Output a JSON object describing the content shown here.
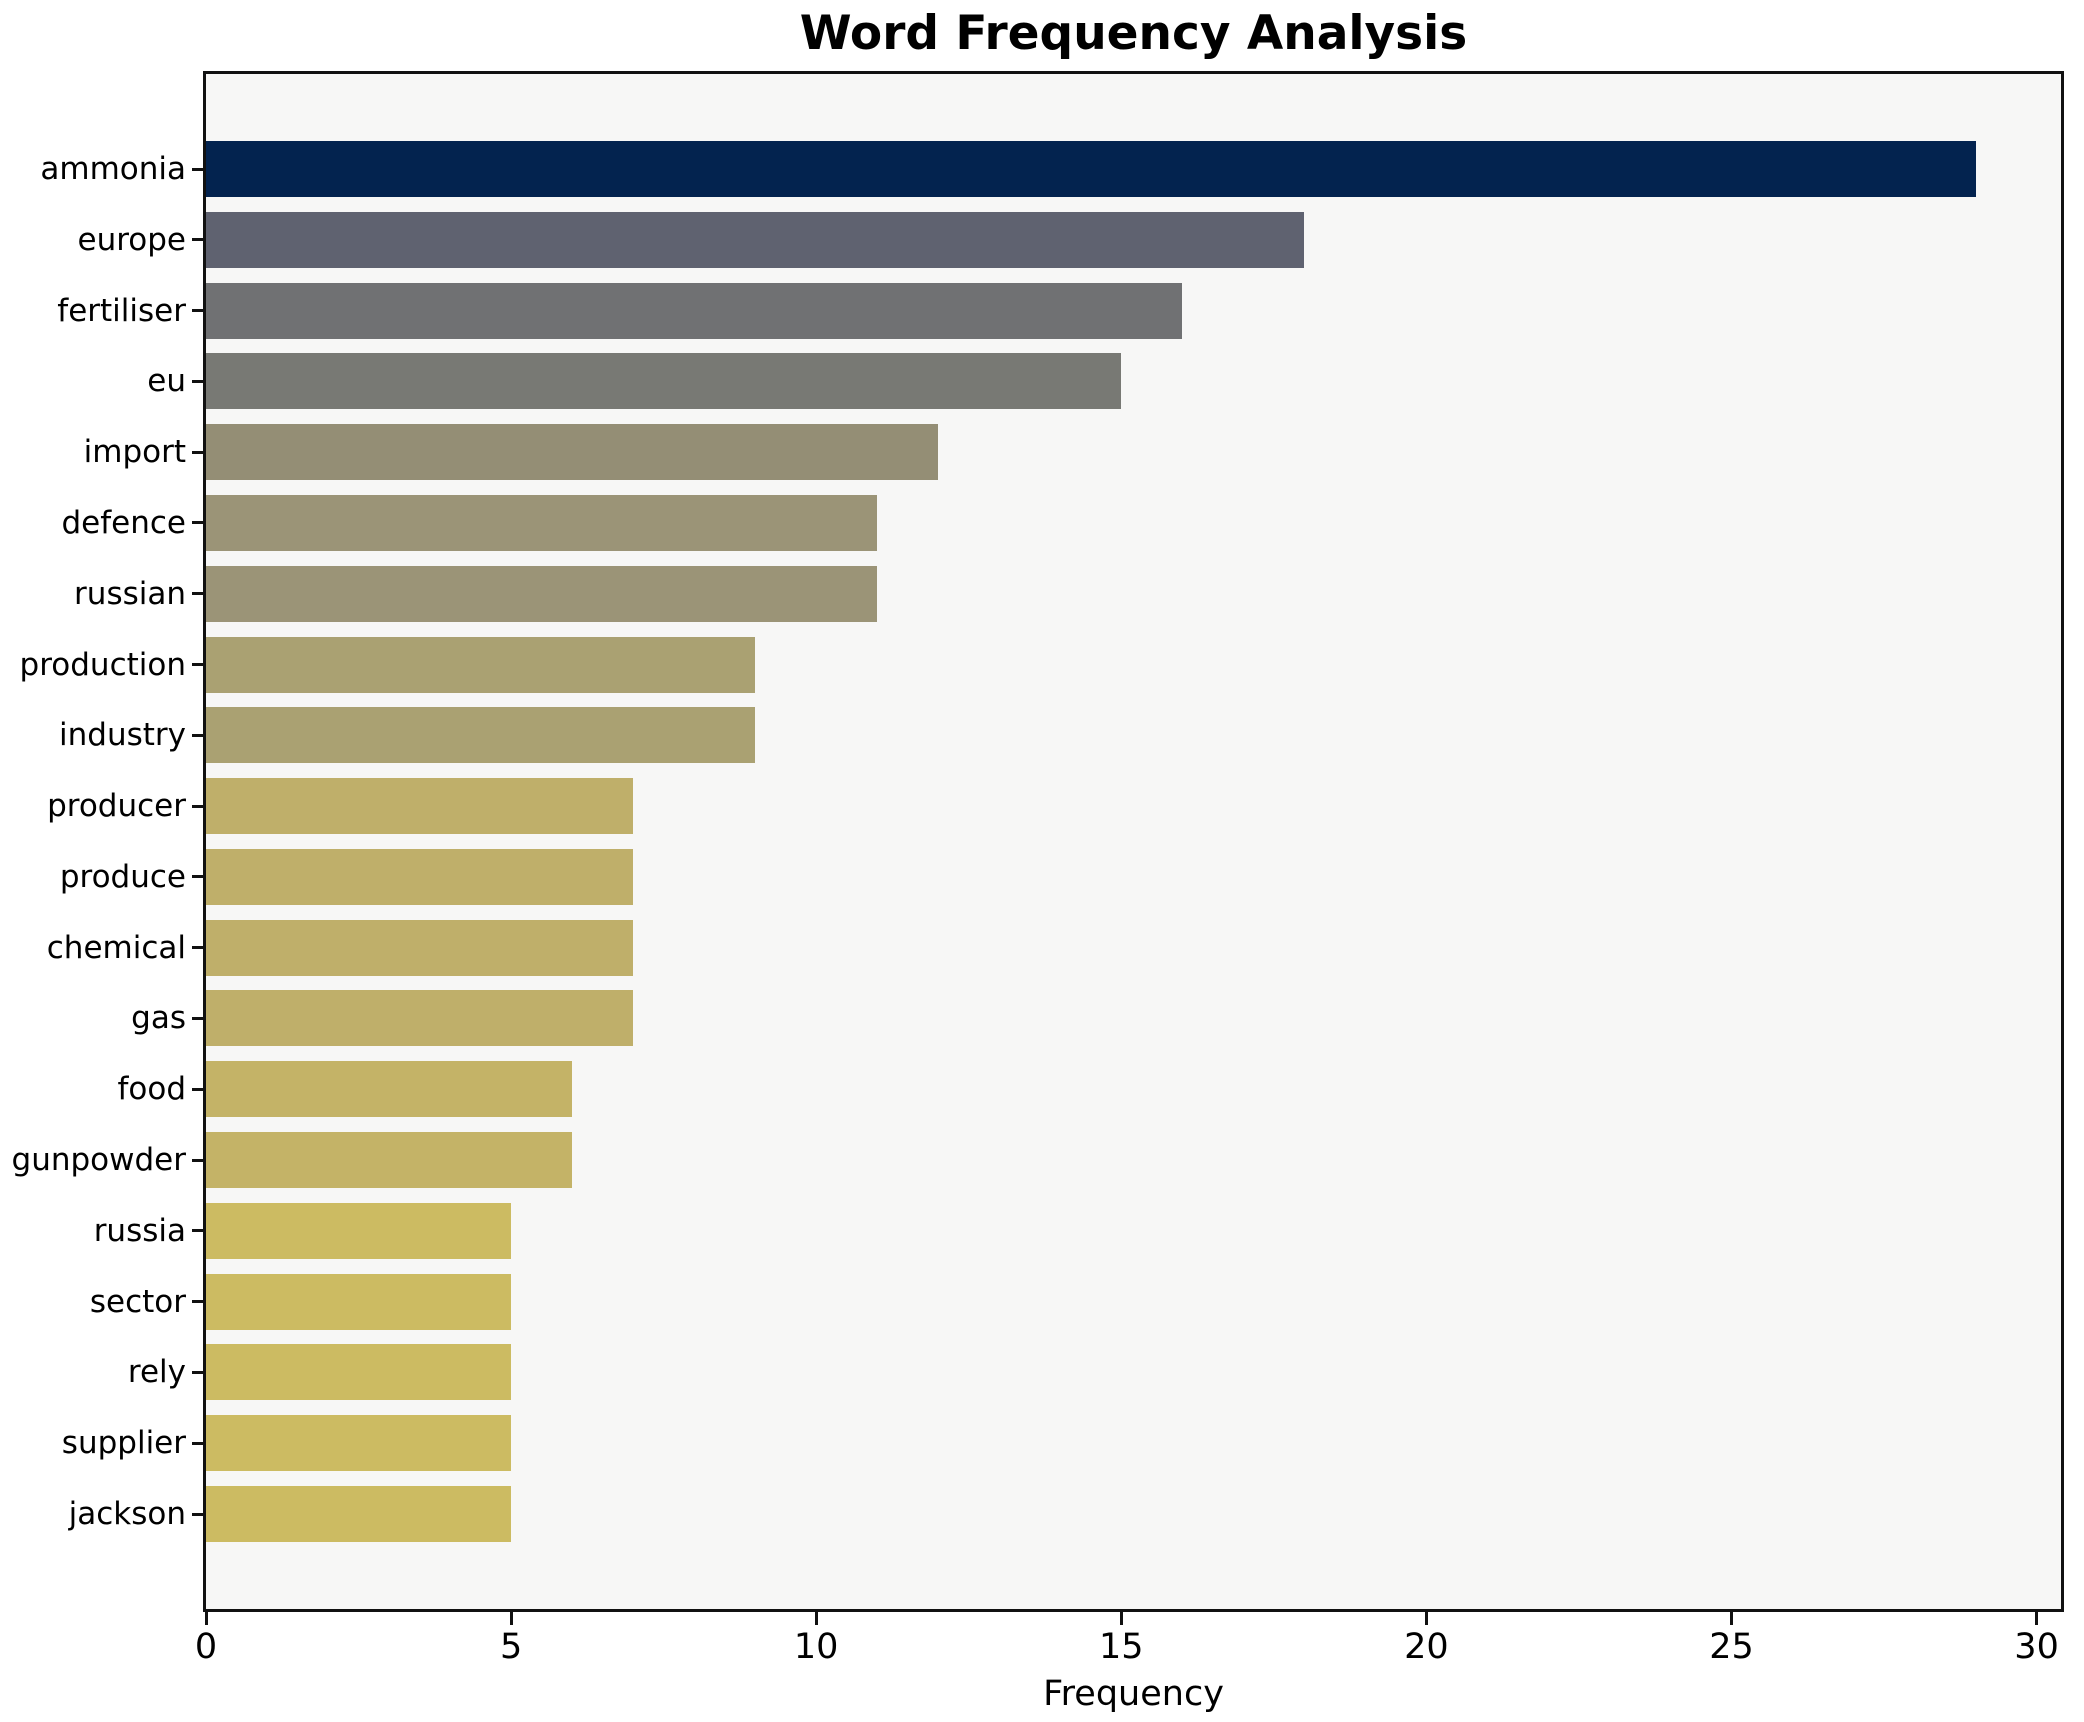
{
  "figure": {
    "background": "#ffffff",
    "plot_background": "#f7f7f6",
    "spine_color": "#111111"
  },
  "chart_data": {
    "type": "bar",
    "orientation": "horizontal",
    "title": "Word Frequency Analysis",
    "xlabel": "Frequency",
    "ylabel": "",
    "categories": [
      "ammonia",
      "europe",
      "fertiliser",
      "eu",
      "import",
      "defence",
      "russian",
      "production",
      "industry",
      "producer",
      "produce",
      "chemical",
      "gas",
      "food",
      "gunpowder",
      "russia",
      "sector",
      "rely",
      "supplier",
      "jackson"
    ],
    "values": [
      29,
      18,
      16,
      15,
      12,
      11,
      11,
      9,
      9,
      7,
      7,
      7,
      7,
      6,
      6,
      5,
      5,
      5,
      5,
      5
    ],
    "bar_colors": [
      "#03234f",
      "#5f6270",
      "#707173",
      "#787974",
      "#948e75",
      "#9b9477",
      "#9b9477",
      "#aaa172",
      "#aaa172",
      "#bfaf6a",
      "#bfaf6a",
      "#bfaf6a",
      "#bfaf6a",
      "#c4b367",
      "#c4b367",
      "#ccbb62",
      "#ccbb62",
      "#ccbb62",
      "#ccbb62",
      "#ccbb62"
    ],
    "colormap_note": "cividis, dark navy at highest value to khaki at lowest",
    "xticks": [
      0,
      5,
      10,
      15,
      20,
      25,
      30
    ],
    "xlim": [
      0,
      30.4
    ],
    "grid": false,
    "legend": "none"
  }
}
